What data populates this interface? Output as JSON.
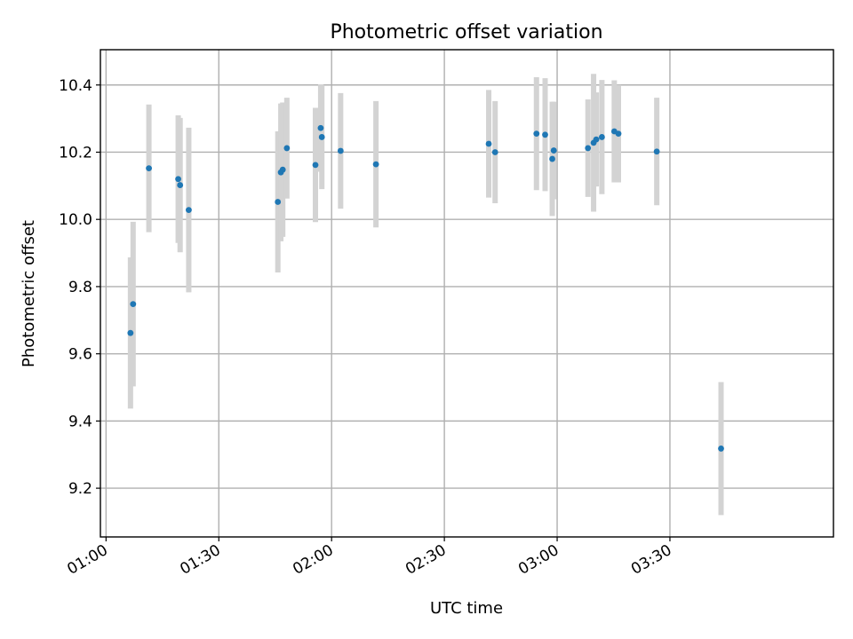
{
  "chart_data": {
    "type": "scatter",
    "title": "Photometric offset variation",
    "xlabel": "UTC time",
    "ylabel": "Photometric offset",
    "xlim": [
      "00:58:30",
      "04:13:30"
    ],
    "ylim": [
      9.055,
      10.505
    ],
    "x_ticks": [
      "01:00",
      "01:30",
      "02:00",
      "02:30",
      "03:00",
      "03:30"
    ],
    "y_ticks": [
      9.2,
      9.4,
      9.6,
      9.8,
      10.0,
      10.2,
      10.4
    ],
    "grid": true,
    "marker_color": "#1f77b4",
    "errorbar_color": "#d3d3d3",
    "points": [
      {
        "t": "01:06:30",
        "y": 9.662,
        "err": 0.225
      },
      {
        "t": "01:07:12",
        "y": 9.748,
        "err": 0.245
      },
      {
        "t": "01:11:24",
        "y": 10.152,
        "err": 0.19
      },
      {
        "t": "01:19:12",
        "y": 10.12,
        "err": 0.19
      },
      {
        "t": "01:19:42",
        "y": 10.102,
        "err": 0.2
      },
      {
        "t": "01:22:00",
        "y": 10.028,
        "err": 0.245
      },
      {
        "t": "01:45:42",
        "y": 10.052,
        "err": 0.21
      },
      {
        "t": "01:46:30",
        "y": 10.14,
        "err": 0.205
      },
      {
        "t": "01:47:00",
        "y": 10.148,
        "err": 0.2
      },
      {
        "t": "01:48:06",
        "y": 10.212,
        "err": 0.15
      },
      {
        "t": "01:55:42",
        "y": 10.162,
        "err": 0.17
      },
      {
        "t": "01:57:06",
        "y": 10.272,
        "err": 0.13
      },
      {
        "t": "01:57:24",
        "y": 10.245,
        "err": 0.155
      },
      {
        "t": "02:02:24",
        "y": 10.204,
        "err": 0.172
      },
      {
        "t": "02:11:48",
        "y": 10.164,
        "err": 0.188
      },
      {
        "t": "02:41:48",
        "y": 10.225,
        "err": 0.16
      },
      {
        "t": "02:43:30",
        "y": 10.2,
        "err": 0.152
      },
      {
        "t": "02:54:30",
        "y": 10.255,
        "err": 0.168
      },
      {
        "t": "02:56:48",
        "y": 10.252,
        "err": 0.168
      },
      {
        "t": "02:58:42",
        "y": 10.18,
        "err": 0.17
      },
      {
        "t": "02:59:06",
        "y": 10.205,
        "err": 0.145
      },
      {
        "t": "03:08:12",
        "y": 10.212,
        "err": 0.145
      },
      {
        "t": "03:09:42",
        "y": 10.228,
        "err": 0.205
      },
      {
        "t": "03:10:24",
        "y": 10.238,
        "err": 0.14
      },
      {
        "t": "03:11:54",
        "y": 10.245,
        "err": 0.17
      },
      {
        "t": "03:15:12",
        "y": 10.262,
        "err": 0.152
      },
      {
        "t": "03:16:18",
        "y": 10.255,
        "err": 0.145
      },
      {
        "t": "03:26:30",
        "y": 10.202,
        "err": 0.16
      },
      {
        "t": "03:43:36",
        "y": 9.318,
        "err": 0.198
      }
    ]
  }
}
